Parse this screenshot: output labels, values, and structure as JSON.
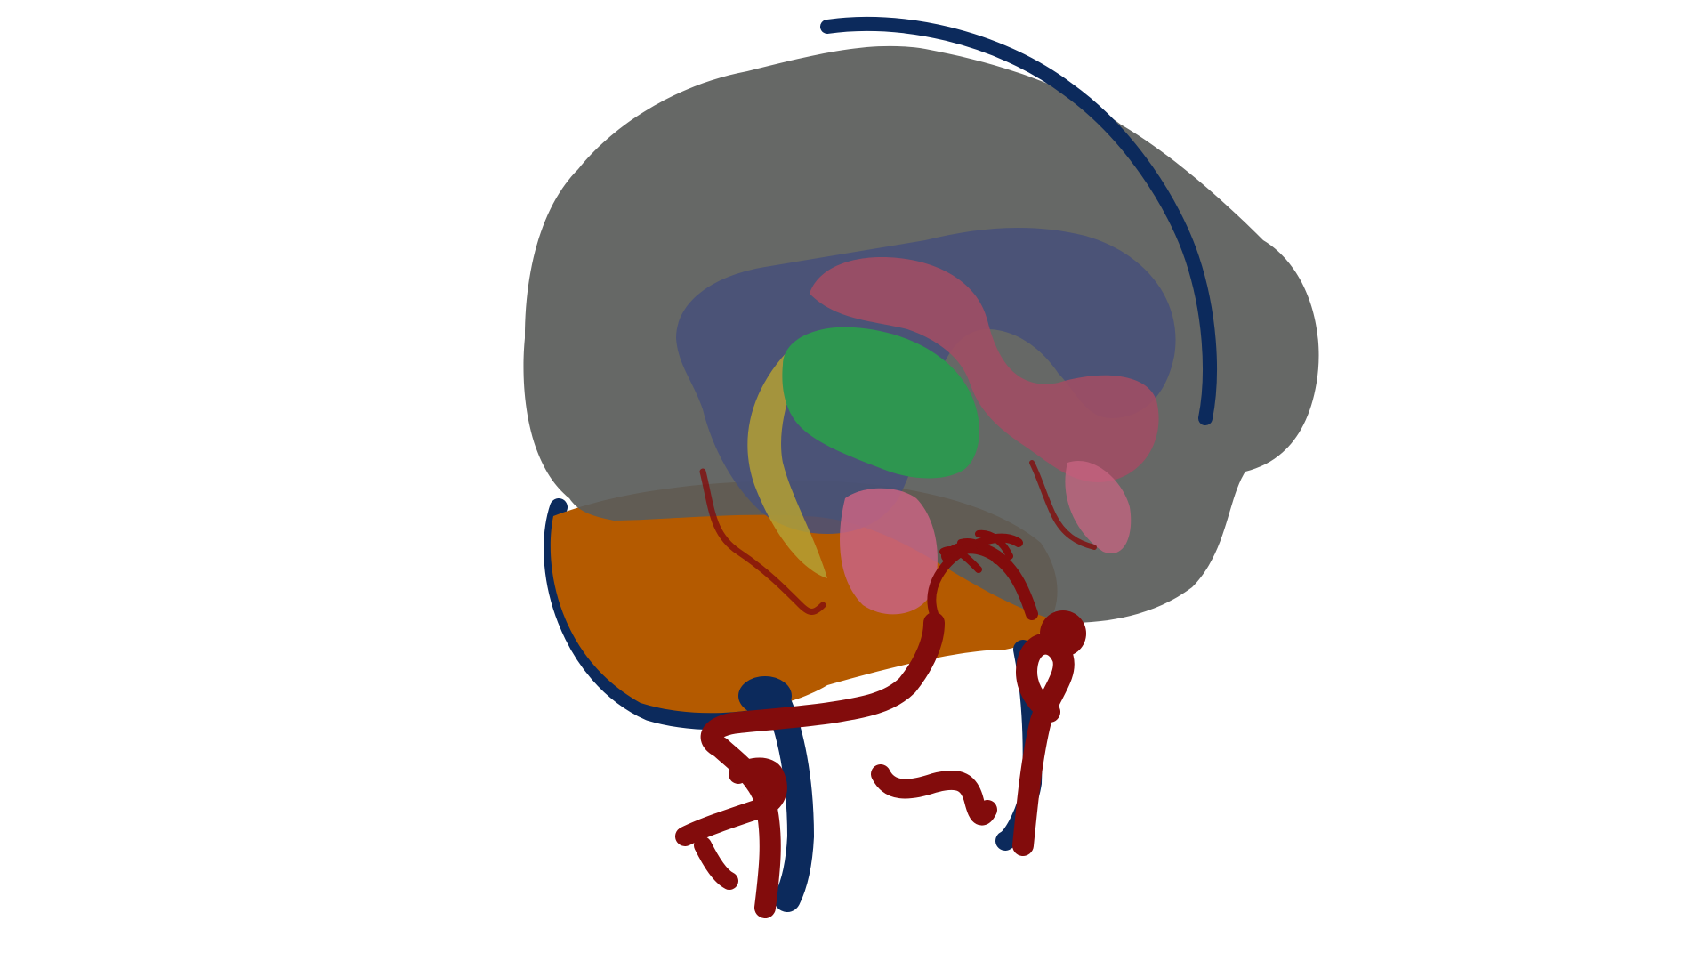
{
  "viewer": {
    "background_color": "#ffffff"
  },
  "structures": [
    {
      "name": "cerebrum",
      "color": "#5a5c5a",
      "opacity": 0.93
    },
    {
      "name": "venous-sinuses",
      "color": "#0c2a5c"
    },
    {
      "name": "cerebellum",
      "color": "#b45a00"
    },
    {
      "name": "lateral-ventricles",
      "color": "#46507a"
    },
    {
      "name": "caudate-nucleus",
      "color": "#a04e64"
    },
    {
      "name": "thalamus",
      "color": "#2e9650"
    },
    {
      "name": "hippocampus",
      "color": "#b4a032"
    },
    {
      "name": "putamen",
      "color": "#c86482"
    },
    {
      "name": "cerebral-arteries",
      "color": "#820c0c"
    }
  ]
}
